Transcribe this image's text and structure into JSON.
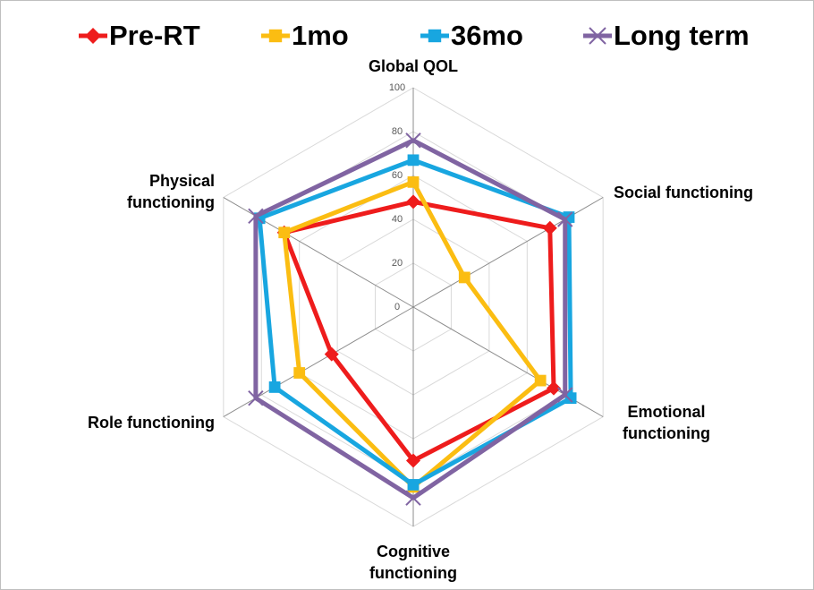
{
  "chart_data": {
    "type": "radar",
    "categories": [
      "Global QOL",
      "Social functioning",
      "Emotional functioning",
      "Cognitive functioning",
      "Role functioning",
      "Physical functioning"
    ],
    "series": [
      {
        "name": "Pre-RT",
        "color": "#ee1c1c",
        "marker": "diamond",
        "values": [
          48,
          72,
          74,
          70,
          43,
          68
        ]
      },
      {
        "name": "1mo",
        "color": "#fbbd12",
        "marker": "square",
        "values": [
          57,
          27,
          67,
          82,
          60,
          68
        ]
      },
      {
        "name": "36mo",
        "color": "#18a6e0",
        "marker": "square",
        "values": [
          67,
          82,
          83,
          81,
          73,
          81
        ]
      },
      {
        "name": "Long term",
        "color": "#8064a2",
        "marker": "x",
        "values": [
          76,
          80,
          80,
          87,
          83,
          83
        ]
      }
    ],
    "rlim": [
      0,
      100
    ],
    "rticks": [
      0,
      20,
      40,
      60,
      80,
      100
    ],
    "grid": true,
    "legend": "top"
  }
}
